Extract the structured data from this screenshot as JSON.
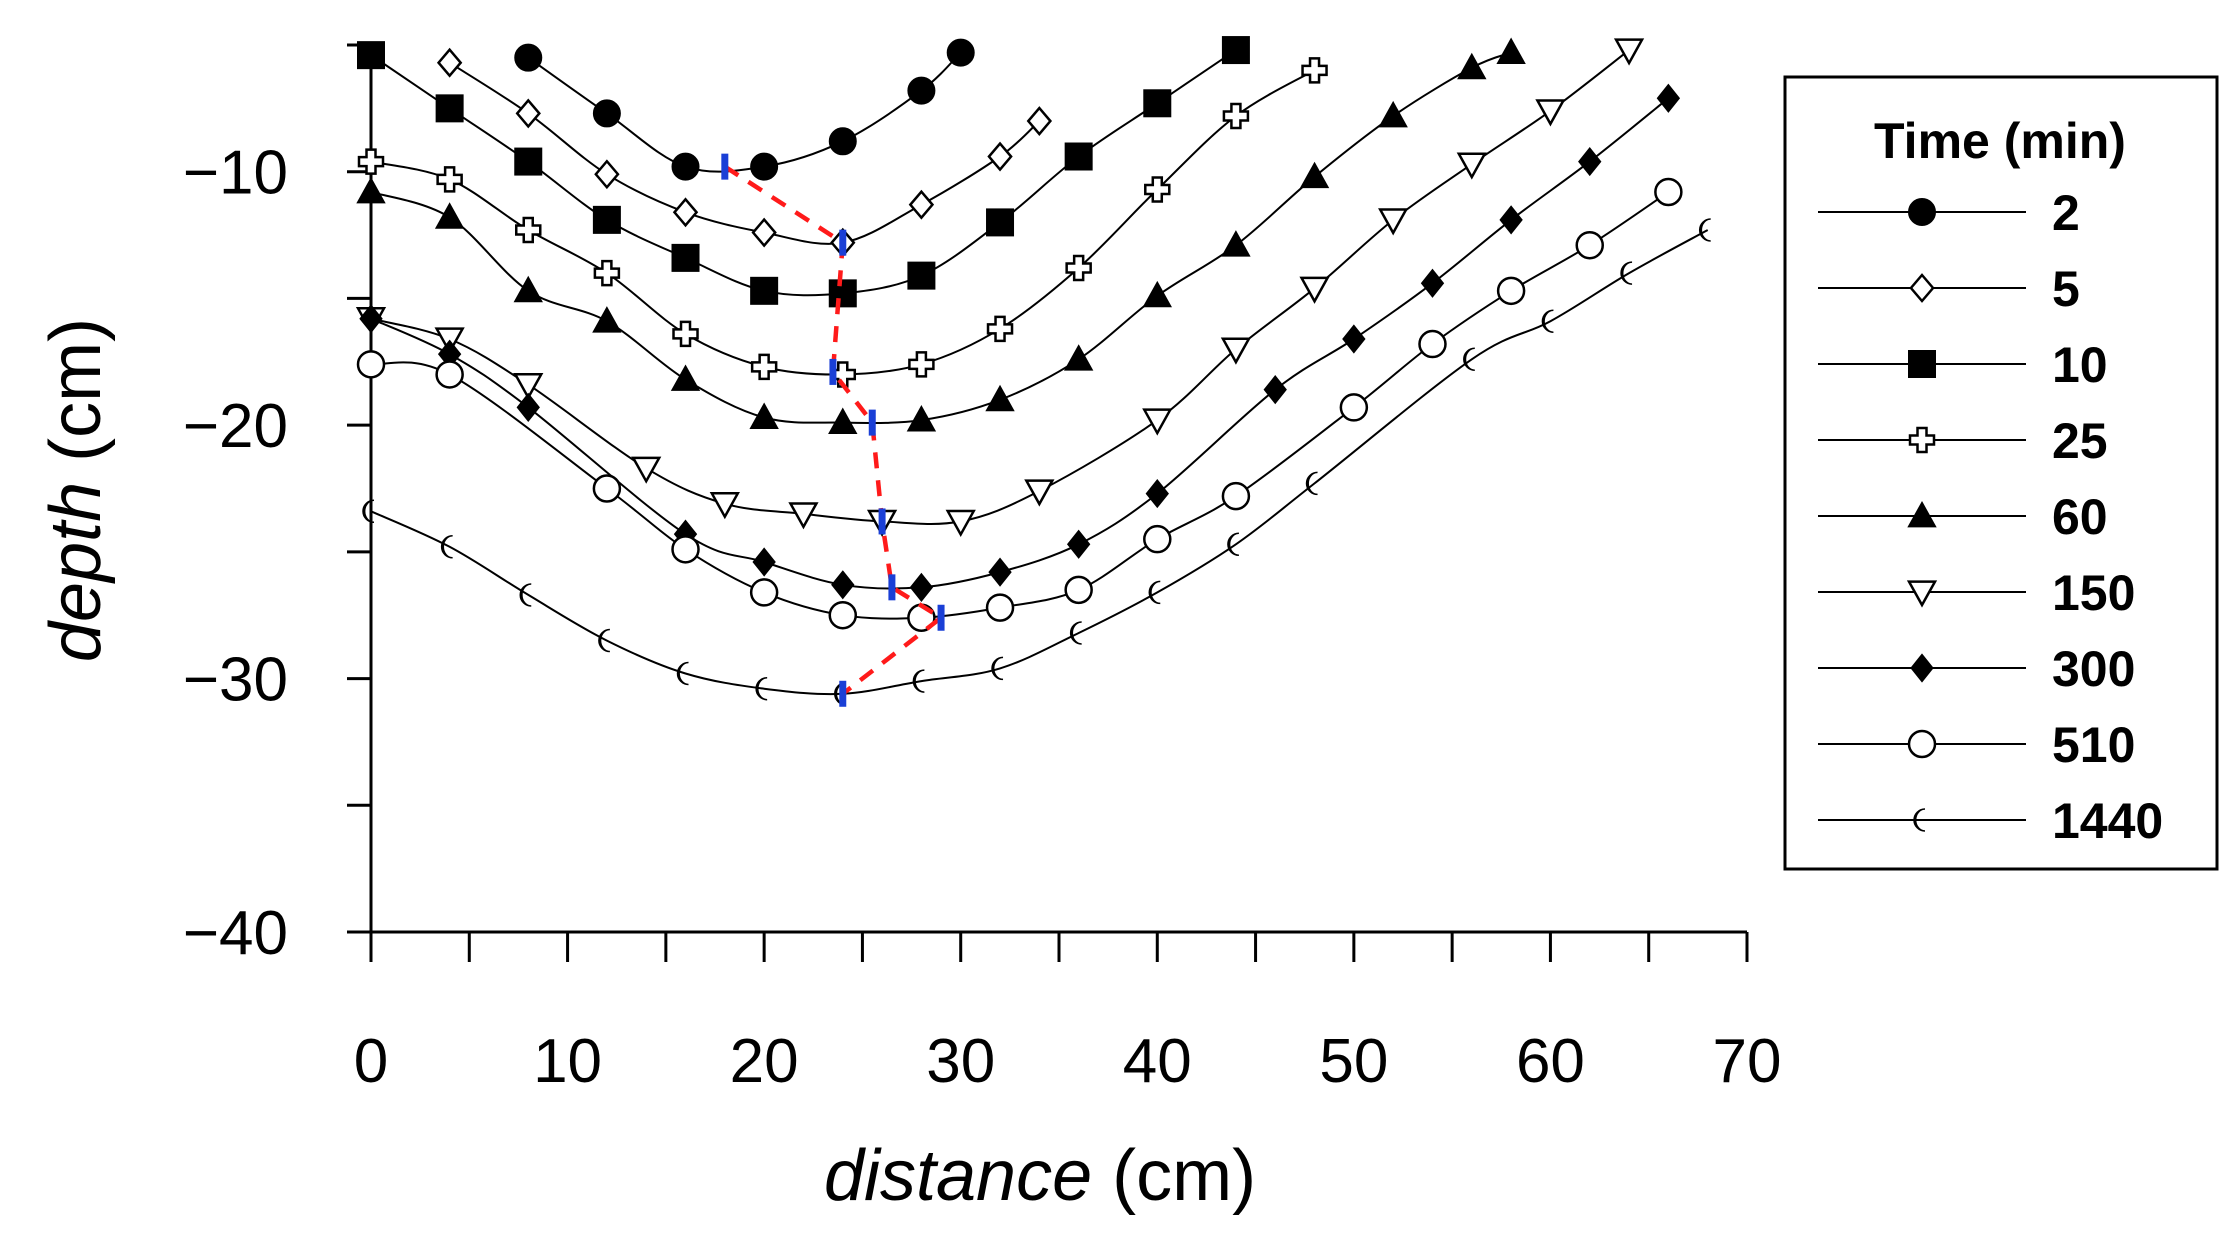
{
  "chart_data": {
    "type": "line",
    "title": "",
    "xlabel": {
      "italic": "distance",
      "unit": " (cm)"
    },
    "ylabel": {
      "italic": "depth",
      "unit": " (cm)"
    },
    "xlim": [
      0,
      70
    ],
    "ylim": [
      -40,
      -5
    ],
    "x_ticks": [
      0,
      10,
      20,
      30,
      40,
      50,
      60,
      70
    ],
    "x_tick_labels": [
      "0",
      "10",
      "20",
      "30",
      "40",
      "50",
      "60",
      "70"
    ],
    "y_ticks": [
      -10,
      -20,
      -30,
      -40
    ],
    "y_tick_labels": [
      "−10",
      "−20",
      "−30",
      "−40"
    ],
    "grid": false,
    "legend": {
      "title": "Time (min)",
      "position": "right"
    },
    "series": [
      {
        "name": "2",
        "marker": "circle-filled",
        "x": [
          8,
          12,
          16,
          20,
          24,
          28,
          30
        ],
        "y": [
          -5.5,
          -7.7,
          -9.8,
          -9.8,
          -8.8,
          -6.8,
          -5.3
        ]
      },
      {
        "name": "5",
        "marker": "diamond-open",
        "x": [
          4,
          8,
          12,
          16,
          20,
          24,
          28,
          32,
          34
        ],
        "y": [
          -5.7,
          -7.7,
          -10.1,
          -11.6,
          -12.4,
          -12.8,
          -11.3,
          -9.4,
          -8
        ]
      },
      {
        "name": "10",
        "marker": "square-filled",
        "x": [
          0,
          4,
          8,
          12,
          16,
          20,
          24,
          28,
          32,
          36,
          40,
          44
        ],
        "y": [
          -5.4,
          -7.5,
          -9.6,
          -11.9,
          -13.4,
          -14.7,
          -14.8,
          -14.1,
          -12,
          -9.4,
          -7.3,
          -5.2
        ]
      },
      {
        "name": "25",
        "marker": "plus-open",
        "x": [
          0,
          4,
          8,
          12,
          16,
          20,
          24,
          28,
          32,
          36,
          40,
          44,
          48
        ],
        "y": [
          -9.6,
          -10.3,
          -12.3,
          -14,
          -16.4,
          -17.7,
          -18,
          -17.6,
          -16.2,
          -13.8,
          -10.7,
          -7.8,
          -6
        ]
      },
      {
        "name": "60",
        "marker": "triangle-up-filled",
        "x": [
          0,
          4,
          8,
          12,
          16,
          20,
          24,
          28,
          32,
          36,
          40,
          44,
          48,
          52,
          56,
          58
        ],
        "y": [
          -10.8,
          -11.8,
          -14.7,
          -15.9,
          -18.2,
          -19.7,
          -19.9,
          -19.8,
          -19,
          -17.4,
          -14.9,
          -12.9,
          -10.2,
          -7.8,
          -5.9,
          -5.3
        ]
      },
      {
        "name": "150",
        "marker": "triangle-down-open",
        "x": [
          0,
          4,
          8,
          14,
          18,
          22,
          26,
          30,
          34,
          40,
          44,
          48,
          52,
          56,
          60,
          64
        ],
        "y": [
          -15.8,
          -16.6,
          -18.4,
          -21.7,
          -23.1,
          -23.5,
          -23.8,
          -23.8,
          -22.6,
          -19.8,
          -17,
          -14.6,
          -11.9,
          -9.7,
          -7.6,
          -5.2
        ]
      },
      {
        "name": "300",
        "marker": "diamond-filled",
        "x": [
          0,
          4,
          8,
          16,
          20,
          24,
          28,
          32,
          36,
          40,
          46,
          50,
          54,
          58,
          62,
          66
        ],
        "y": [
          -15.8,
          -17.2,
          -19.3,
          -24.3,
          -25.4,
          -26.3,
          -26.4,
          -25.8,
          -24.7,
          -22.7,
          -18.6,
          -16.6,
          -14.4,
          -11.9,
          -9.6,
          -7.1
        ]
      },
      {
        "name": "510",
        "marker": "circle-open",
        "x": [
          0,
          4,
          12,
          16,
          20,
          24,
          28,
          32,
          36,
          40,
          44,
          50,
          54,
          58,
          62,
          66
        ],
        "y": [
          -17.6,
          -18,
          -22.5,
          -24.9,
          -26.6,
          -27.5,
          -27.6,
          -27.2,
          -26.5,
          -24.5,
          -22.8,
          -19.3,
          -16.8,
          -14.7,
          -12.9,
          -10.8
        ]
      },
      {
        "name": "1440",
        "marker": "crescent",
        "x": [
          0,
          4,
          8,
          12,
          16,
          20,
          24,
          28,
          32,
          36,
          40,
          44,
          48,
          56,
          60,
          64,
          68
        ],
        "y": [
          -23.4,
          -24.8,
          -26.7,
          -28.5,
          -29.8,
          -30.4,
          -30.6,
          -30.1,
          -29.6,
          -28.2,
          -26.6,
          -24.7,
          -22.3,
          -17.4,
          -15.9,
          -14,
          -12.3
        ]
      }
    ],
    "annotations": {
      "trough_path": {
        "style": "red-dashed",
        "x": [
          18,
          24,
          23.5,
          25.5,
          26,
          26.5,
          29,
          24
        ],
        "y": [
          -9.8,
          -12.8,
          -17.9,
          -19.9,
          -23.8,
          -26.4,
          -27.6,
          -30.6
        ]
      },
      "trough_markers": {
        "style": "blue-ticks",
        "x": [
          18,
          24,
          23.5,
          25.5,
          26,
          26.5,
          29,
          24
        ],
        "y": [
          -9.8,
          -12.8,
          -17.9,
          -19.9,
          -23.8,
          -26.4,
          -27.6,
          -30.6
        ]
      }
    }
  }
}
